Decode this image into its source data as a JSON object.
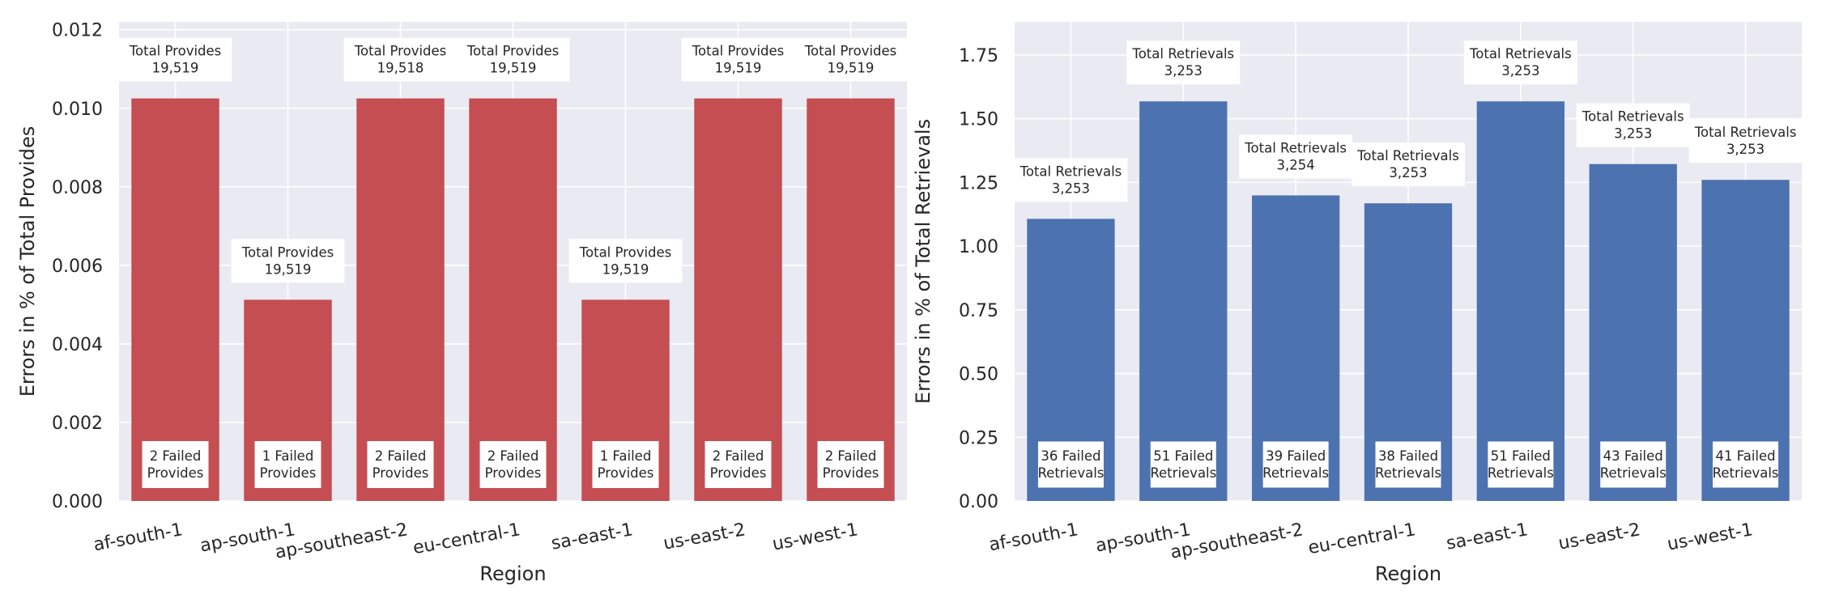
{
  "colors": {
    "plot_bg": "#eaeaf2",
    "grid": "#ffffff",
    "text": "#262626",
    "box_bg": "#ffffff"
  },
  "chart_data": [
    {
      "type": "bar",
      "color": "#c44e52",
      "categories": [
        "af-south-1",
        "ap-south-1",
        "ap-southeast-2",
        "eu-central-1",
        "sa-east-1",
        "us-east-2",
        "us-west-1"
      ],
      "values": [
        0.01025,
        0.005124,
        0.01025,
        0.01025,
        0.005124,
        0.01025,
        0.01025
      ],
      "ylim": [
        0,
        0.0122
      ],
      "yticks": [
        "0.000",
        "0.002",
        "0.004",
        "0.006",
        "0.008",
        "0.010",
        "0.012"
      ],
      "xlabel": "Region",
      "ylabel": "Errors in % of Total Provides",
      "grid": true,
      "top_labels": [
        [
          "Total Provides",
          "19,519"
        ],
        [
          "Total Provides",
          "19,519"
        ],
        [
          "Total Provides",
          "19,518"
        ],
        [
          "Total Provides",
          "19,519"
        ],
        [
          "Total Provides",
          "19,519"
        ],
        [
          "Total Provides",
          "19,519"
        ],
        [
          "Total Provides",
          "19,519"
        ]
      ],
      "bottom_labels": [
        [
          "2 Failed",
          "Provides"
        ],
        [
          "1 Failed",
          "Provides"
        ],
        [
          "2 Failed",
          "Provides"
        ],
        [
          "2 Failed",
          "Provides"
        ],
        [
          "1 Failed",
          "Provides"
        ],
        [
          "2 Failed",
          "Provides"
        ],
        [
          "2 Failed",
          "Provides"
        ]
      ]
    },
    {
      "type": "bar",
      "color": "#4c72b0",
      "categories": [
        "af-south-1",
        "ap-south-1",
        "ap-southeast-2",
        "eu-central-1",
        "sa-east-1",
        "us-east-2",
        "us-west-1"
      ],
      "values": [
        1.107,
        1.568,
        1.199,
        1.168,
        1.568,
        1.322,
        1.26
      ],
      "ylim": [
        0,
        1.88
      ],
      "yticks": [
        "0.00",
        "0.25",
        "0.50",
        "0.75",
        "1.00",
        "1.25",
        "1.50",
        "1.75"
      ],
      "xlabel": "Region",
      "ylabel": "Errors in % of Total Retrievals",
      "grid": true,
      "top_labels": [
        [
          "Total Retrievals",
          "3,253"
        ],
        [
          "Total Retrievals",
          "3,253"
        ],
        [
          "Total Retrievals",
          "3,254"
        ],
        [
          "Total Retrievals",
          "3,253"
        ],
        [
          "Total Retrievals",
          "3,253"
        ],
        [
          "Total Retrievals",
          "3,253"
        ],
        [
          "Total Retrievals",
          "3,253"
        ]
      ],
      "bottom_labels": [
        [
          "36 Failed",
          "Retrievals"
        ],
        [
          "51 Failed",
          "Retrievals"
        ],
        [
          "39 Failed",
          "Retrievals"
        ],
        [
          "38 Failed",
          "Retrievals"
        ],
        [
          "51 Failed",
          "Retrievals"
        ],
        [
          "43 Failed",
          "Retrievals"
        ],
        [
          "41 Failed",
          "Retrievals"
        ]
      ]
    }
  ]
}
